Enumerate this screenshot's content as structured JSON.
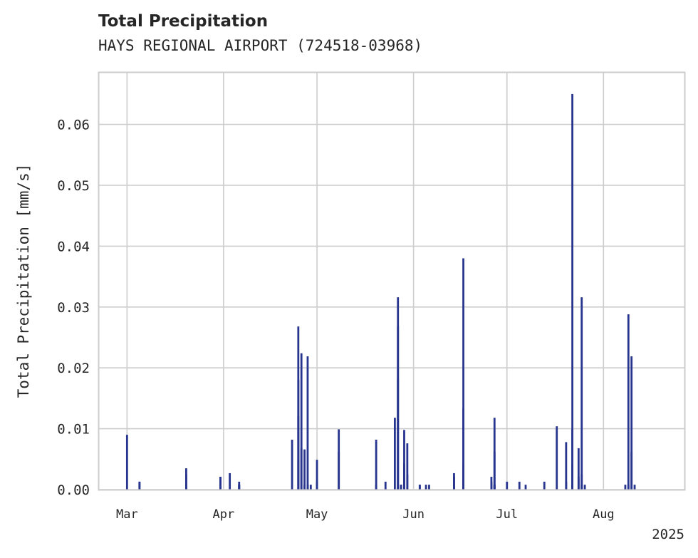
{
  "chart_data": {
    "type": "bar",
    "title": "Total Precipitation",
    "subtitle": "HAYS REGIONAL AIRPORT (724518-03968)",
    "xlabel": "",
    "ylabel": "Total Precipitation [mm/s]",
    "ylim": [
      0,
      0.0685
    ],
    "xlim": [
      "2025-02-20",
      "2025-08-27"
    ],
    "yticks": [
      {
        "value": 0.0,
        "label": "0.00"
      },
      {
        "value": 0.01,
        "label": "0.01"
      },
      {
        "value": 0.02,
        "label": "0.02"
      },
      {
        "value": 0.03,
        "label": "0.03"
      },
      {
        "value": 0.04,
        "label": "0.04"
      },
      {
        "value": 0.05,
        "label": "0.05"
      },
      {
        "value": 0.06,
        "label": "0.06"
      }
    ],
    "xticks": [
      {
        "date": "2025-03-01",
        "label": "Mar"
      },
      {
        "date": "2025-04-01",
        "label": "Apr"
      },
      {
        "date": "2025-05-01",
        "label": "May"
      },
      {
        "date": "2025-06-01",
        "label": "Jun"
      },
      {
        "date": "2025-07-01",
        "label": "Jul"
      },
      {
        "date": "2025-08-01",
        "label": "Aug"
      }
    ],
    "year_label": "2025",
    "grid": true,
    "series": [
      {
        "color": "#27358f",
        "x": [
          "2025-03-01",
          "2025-03-05",
          "2025-03-05",
          "2025-03-20",
          "2025-03-20",
          "2025-03-31",
          "2025-03-31",
          "2025-04-03",
          "2025-04-06",
          "2025-04-06",
          "2025-04-06",
          "2025-04-06",
          "2025-04-23",
          "2025-04-25",
          "2025-04-25",
          "2025-04-25",
          "2025-04-25",
          "2025-04-26",
          "2025-04-26",
          "2025-04-27",
          "2025-04-27",
          "2025-04-28",
          "2025-04-28",
          "2025-04-28",
          "2025-04-29",
          "2025-05-01",
          "2025-05-01",
          "2025-05-08",
          "2025-05-08",
          "2025-05-20",
          "2025-05-20",
          "2025-05-23",
          "2025-05-26",
          "2025-05-27",
          "2025-05-27",
          "2025-05-27",
          "2025-05-28",
          "2025-05-28",
          "2025-05-29",
          "2025-05-29",
          "2025-05-30",
          "2025-05-30",
          "2025-06-03",
          "2025-06-03",
          "2025-06-05",
          "2025-06-06",
          "2025-06-14",
          "2025-06-14",
          "2025-06-17",
          "2025-06-17",
          "2025-06-17",
          "2025-06-17",
          "2025-06-17",
          "2025-06-17",
          "2025-06-26",
          "2025-06-26",
          "2025-06-26",
          "2025-06-27",
          "2025-06-27",
          "2025-06-27",
          "2025-06-27",
          "2025-06-27",
          "2025-07-01",
          "2025-07-05",
          "2025-07-07",
          "2025-07-13",
          "2025-07-17",
          "2025-07-20",
          "2025-07-20",
          "2025-07-22",
          "2025-07-22",
          "2025-07-22",
          "2025-07-22",
          "2025-07-22",
          "2025-07-24",
          "2025-07-24",
          "2025-07-25",
          "2025-07-25",
          "2025-07-25",
          "2025-07-26",
          "2025-08-08",
          "2025-08-09",
          "2025-08-09",
          "2025-08-10",
          "2025-08-10",
          "2025-08-11"
        ],
        "values": [
          0.009,
          0.0013,
          0.0013,
          0.0035,
          0.0025,
          0.0021,
          0.0021,
          0.0027,
          0.0013,
          0.0008,
          0.0008,
          0.0008,
          0.0082,
          0.0049,
          0.0268,
          0.018,
          0.0121,
          0.0224,
          0.0068,
          0.0008,
          0.0066,
          0.0219,
          0.0008,
          0.0008,
          0.0008,
          0.0049,
          0.0013,
          0.0099,
          0.0062,
          0.0082,
          0.0008,
          0.0013,
          0.0118,
          0.0268,
          0.0316,
          0.0182,
          0.0008,
          0.0008,
          0.0098,
          0.0042,
          0.0076,
          0.0025,
          0.0008,
          0.0008,
          0.0008,
          0.0008,
          0.0027,
          0.0021,
          0.0015,
          0.038,
          0.0133,
          0.0042,
          0.0015,
          0.0015,
          0.0021,
          0.0013,
          0.0008,
          0.0118,
          0.0062,
          0.0008,
          0.0008,
          0.0008,
          0.0013,
          0.0013,
          0.0008,
          0.0013,
          0.0104,
          0.0078,
          0.0013,
          0.0099,
          0.065,
          0.0042,
          0.0008,
          0.0008,
          0.0068,
          0.0021,
          0.0025,
          0.0316,
          0.0008,
          0.0008,
          0.0008,
          0.0288,
          0.0008,
          0.0062,
          0.0219,
          0.0008
        ]
      }
    ]
  }
}
